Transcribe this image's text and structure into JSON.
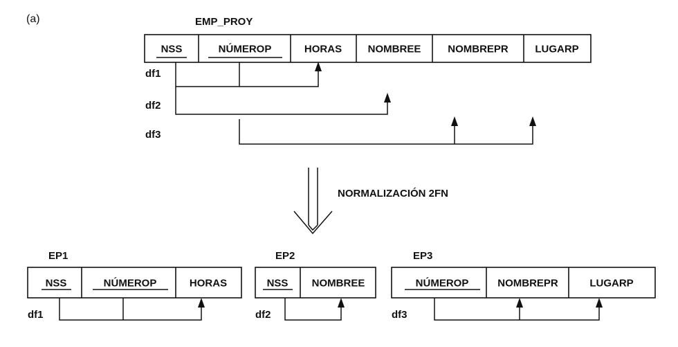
{
  "panel_label": "(a)",
  "top_relation": {
    "name": "EMP_PROY",
    "attributes": [
      "NSS",
      "NÚMEROP",
      "HORAS",
      "NOMBREE",
      "NOMBREPR",
      "LUGARP"
    ],
    "key_attributes": [
      "NSS",
      "NÚMEROP"
    ],
    "dependencies": [
      "df1",
      "df2",
      "df3"
    ]
  },
  "transition_label": "NORMALIZACIÓN 2FN",
  "result_relations": [
    {
      "name": "EP1",
      "attributes": [
        "NSS",
        "NÚMEROP",
        "HORAS"
      ],
      "key_attributes": [
        "NSS",
        "NÚMEROP"
      ],
      "dependency": "df1"
    },
    {
      "name": "EP2",
      "attributes": [
        "NSS",
        "NOMBREE"
      ],
      "key_attributes": [
        "NSS"
      ],
      "dependency": "df2"
    },
    {
      "name": "EP3",
      "attributes": [
        "NÚMEROP",
        "NOMBREPR",
        "LUGARP"
      ],
      "key_attributes": [
        "NÚMEROP"
      ],
      "dependency": "df3"
    }
  ]
}
